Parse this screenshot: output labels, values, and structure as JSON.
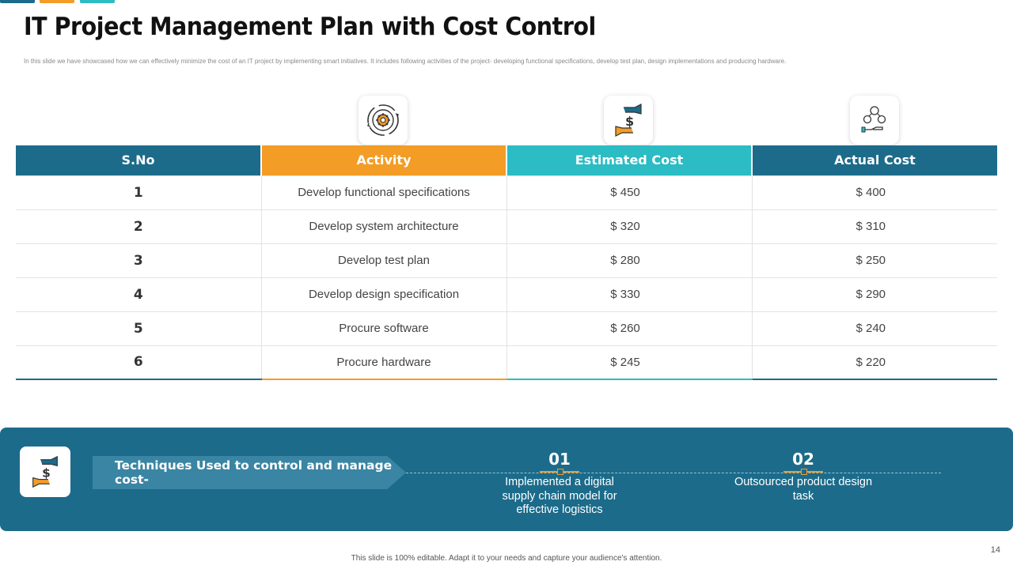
{
  "slide": {
    "title": "IT Project Management Plan with Cost Control",
    "subtitle": "In this slide we have showcased how we can effectively minimize the cost of an IT project by implementing smart initiatives. It includes following activities of the project- developing functional specifications, develop test plan, design implementations and producing hardware.",
    "footer": "This slide is 100% editable. Adapt it to your needs and capture your audience's attention.",
    "page_number": "14"
  },
  "header_icons": [
    "gear-cycle-icon",
    "money-exchange-icon",
    "cost-management-icon"
  ],
  "table": {
    "headers": [
      "S.No",
      "Activity",
      "Estimated Cost",
      "Actual Cost"
    ],
    "rows": [
      {
        "sno": "1",
        "activity": "Develop functional specifications",
        "estimated": "$ 450",
        "actual": "$ 400"
      },
      {
        "sno": "2",
        "activity": "Develop system architecture",
        "estimated": "$ 320",
        "actual": "$ 310"
      },
      {
        "sno": "3",
        "activity": "Develop test plan",
        "estimated": "$ 280",
        "actual": "$ 250"
      },
      {
        "sno": "4",
        "activity": "Develop design specification",
        "estimated": "$ 330",
        "actual": "$ 290"
      },
      {
        "sno": "5",
        "activity": "Procure software",
        "estimated": "$ 260",
        "actual": "$ 240"
      },
      {
        "sno": "6",
        "activity": "Procure hardware",
        "estimated": "$ 245",
        "actual": "$ 220"
      }
    ]
  },
  "techniques": {
    "label": "Techniques Used to control and manage cost-",
    "icon": "money-exchange-icon",
    "items": [
      {
        "num": "01",
        "text": "Implemented a digital supply chain model for effective logistics"
      },
      {
        "num": "02",
        "text": "Outsourced product design task"
      }
    ]
  },
  "colors": {
    "primary": "#1c6b8a",
    "orange": "#f39c26",
    "teal": "#2bbcc4"
  }
}
